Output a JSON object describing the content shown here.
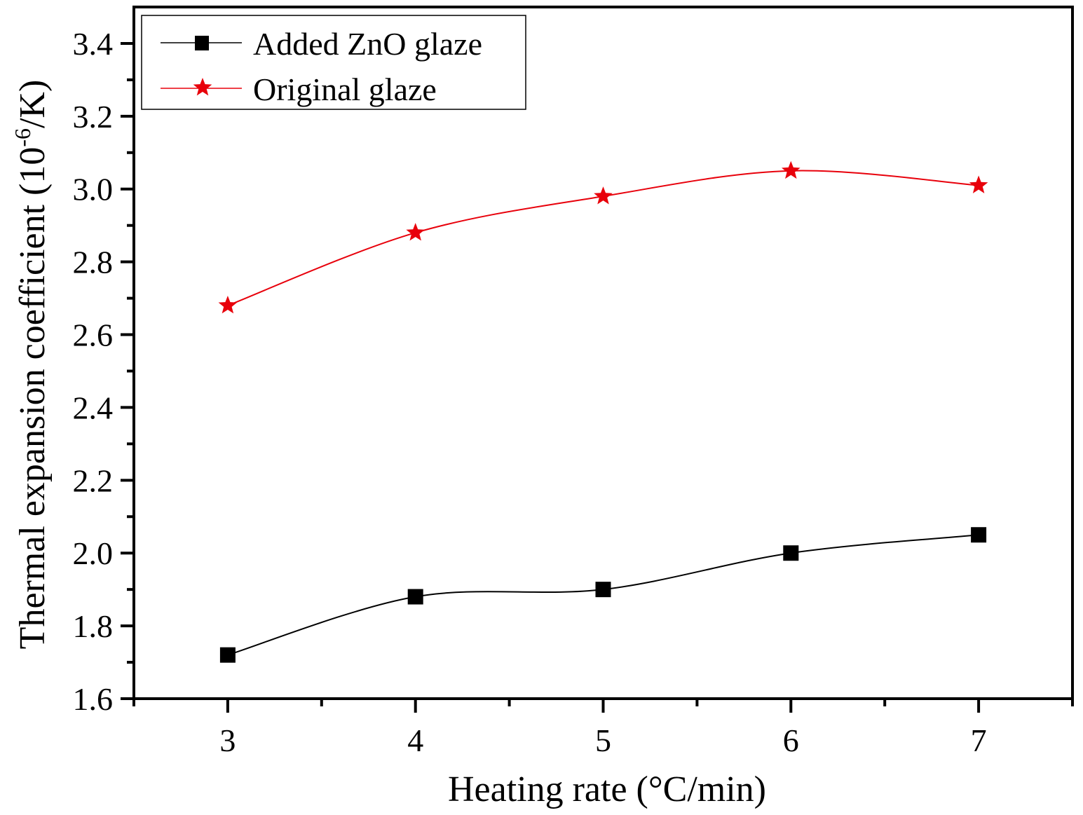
{
  "chart_data": {
    "type": "line",
    "title": "",
    "xlabel": "Heating rate (°C/min)",
    "ylabel_main": "Thermal expansion coefficient (10",
    "ylabel_sup": "-6",
    "ylabel_end": "/K)",
    "xlim": [
      2.5,
      7.5
    ],
    "ylim": [
      1.6,
      3.5
    ],
    "xticks": [
      3,
      4,
      5,
      6,
      7
    ],
    "xtick_labels": [
      "3",
      "4",
      "5",
      "6",
      "7"
    ],
    "yticks": [
      1.6,
      1.8,
      2.0,
      2.2,
      2.4,
      2.6,
      2.8,
      3.0,
      3.2,
      3.4
    ],
    "ytick_labels": [
      "1.6",
      "1.8",
      "2.0",
      "2.2",
      "2.4",
      "2.6",
      "2.8",
      "3.0",
      "3.2",
      "3.4"
    ],
    "grid": false,
    "legend_position": "top-left",
    "x": [
      3,
      4,
      5,
      6,
      7
    ],
    "series": [
      {
        "name": "Added ZnO glaze",
        "marker": "square",
        "color": "#000000",
        "values": [
          1.72,
          1.88,
          1.9,
          2.0,
          2.05
        ]
      },
      {
        "name": "Original glaze",
        "marker": "star",
        "color": "#e8000b",
        "values": [
          2.68,
          2.88,
          2.98,
          3.05,
          3.01
        ]
      }
    ]
  }
}
